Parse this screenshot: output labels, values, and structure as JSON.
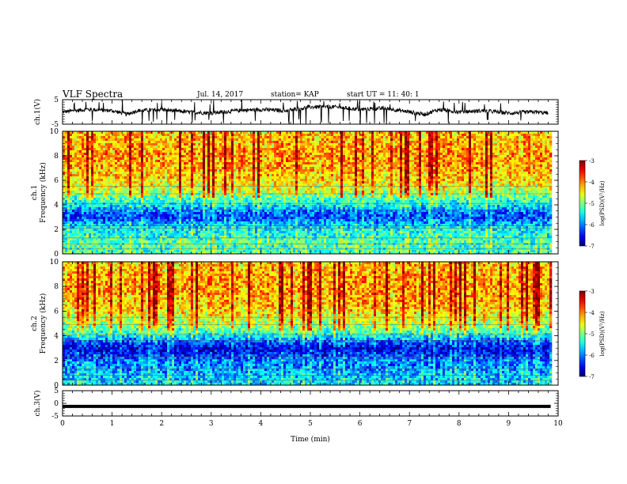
{
  "header": {
    "title": "VLF Spectra",
    "date": "Jul. 14, 2017",
    "station": "station= KAP",
    "start_ut": "start UT =  11: 40: 1"
  },
  "chart_data": [
    {
      "type": "line",
      "panel": "channel-1-voltage",
      "ylabel": "ch.1(V)",
      "xlabel": "",
      "xlim": [
        0,
        10
      ],
      "ylim": [
        -5,
        5
      ],
      "yticks": [
        5,
        -5
      ],
      "series": [
        {
          "trend_x": [
            0,
            0.5,
            1,
            1.3,
            1.5,
            2,
            2.5,
            3,
            3.5,
            4,
            4.5,
            5,
            5.5,
            6,
            6.5,
            7,
            7.3,
            7.6,
            8,
            8.5,
            9,
            9.5,
            9.8
          ],
          "trend_y": [
            0,
            1,
            0.5,
            -1,
            0.5,
            1,
            0,
            -0.5,
            0.5,
            1,
            0.5,
            2,
            2,
            1,
            1.5,
            0,
            -1,
            1,
            0,
            0.5,
            -0.5,
            0,
            -0.5
          ]
        }
      ],
      "color": "#000000"
    },
    {
      "type": "heatmap",
      "panel": "channel-1-spectrogram",
      "ylabel": "ch.1 Frequency (kHz)",
      "xlim": [
        0,
        10
      ],
      "ylim": [
        0,
        10
      ],
      "yticks": [
        0,
        2,
        4,
        6,
        8,
        10
      ],
      "data_end_min": 9.85,
      "colorbar": {
        "label": "log(PSD)(V²/Hz)",
        "range": [
          -7,
          -3
        ],
        "ticks": [
          -3,
          -4,
          -5,
          -6,
          -7
        ]
      },
      "level_profile_freq_khz": [
        0,
        0.5,
        1,
        1.5,
        2,
        2.5,
        3,
        3.5,
        4,
        4.5,
        5,
        5.5,
        6,
        7,
        8,
        9,
        10
      ],
      "level_profile_log_psd": [
        -5.2,
        -5.3,
        -5.2,
        -5.4,
        -5.5,
        -5.8,
        -6.3,
        -6.0,
        -5.5,
        -5.2,
        -4.8,
        -4.6,
        -4.4,
        -4.2,
        -4.1,
        -4.2,
        -4.3
      ]
    },
    {
      "type": "heatmap",
      "panel": "channel-2-spectrogram",
      "ylabel": "ch.2 Frequency (kHz)",
      "xlim": [
        0,
        10
      ],
      "ylim": [
        0,
        10
      ],
      "yticks": [
        0,
        2,
        4,
        6,
        8,
        10
      ],
      "data_end_min": 9.85,
      "colorbar": {
        "label": "log(PSD)(V²/Hz)",
        "range": [
          -7,
          -3
        ],
        "ticks": [
          -3,
          -4,
          -5,
          -6,
          -7
        ]
      },
      "level_profile_freq_khz": [
        0,
        0.5,
        1,
        1.5,
        2,
        2.5,
        3,
        3.5,
        4,
        4.5,
        5,
        5.5,
        6,
        7,
        8,
        9,
        10
      ],
      "level_profile_log_psd": [
        -5.6,
        -5.7,
        -5.8,
        -6.0,
        -6.0,
        -6.4,
        -6.6,
        -6.2,
        -5.5,
        -5.1,
        -4.8,
        -4.6,
        -4.4,
        -4.2,
        -4.1,
        -4.2,
        -4.3
      ]
    },
    {
      "type": "line",
      "panel": "channel-3-voltage",
      "ylabel": "ch.3(V)",
      "xlabel": "Time (min)",
      "xlim": [
        0,
        10
      ],
      "ylim": [
        -5,
        5
      ],
      "yticks": [
        5,
        0,
        -5
      ],
      "xticks": [
        0,
        1,
        2,
        3,
        4,
        5,
        6,
        7,
        8,
        9,
        10
      ],
      "series": [
        {
          "x": [
            0,
            9.85
          ],
          "y": [
            -1.2,
            -1.2
          ]
        }
      ],
      "color": "#000000"
    }
  ]
}
